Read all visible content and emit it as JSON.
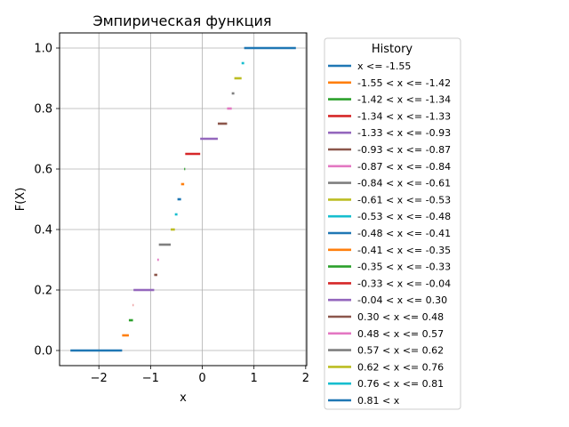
{
  "chart_data": {
    "type": "line",
    "title": "Эмпирическая функция",
    "xlabel": "x",
    "ylabel": "F(X)",
    "xlim": [
      -2.76,
      2.02
    ],
    "ylim": [
      -0.05,
      1.05
    ],
    "xticks": [
      -2,
      -1,
      0,
      1,
      2
    ],
    "xtick_labels": [
      "−2",
      "−1",
      "0",
      "1",
      "2"
    ],
    "yticks": [
      0.0,
      0.2,
      0.4,
      0.6,
      0.8,
      1.0
    ],
    "ytick_labels": [
      "0.0",
      "0.2",
      "0.4",
      "0.6",
      "0.8",
      "1.0"
    ],
    "grid": true,
    "legend": {
      "title": "History",
      "placement": "outside-right"
    },
    "series": [
      {
        "name": "x <= -1.55",
        "x": [
          -2.55,
          -1.55
        ],
        "y": 0.0,
        "color": "#1f77b4"
      },
      {
        "name": "-1.55 < x <= -1.42",
        "x": [
          -1.55,
          -1.42
        ],
        "y": 0.05,
        "color": "#ff7f0e"
      },
      {
        "name": "-1.42 < x <= -1.34",
        "x": [
          -1.42,
          -1.34
        ],
        "y": 0.1,
        "color": "#2ca02c"
      },
      {
        "name": "-1.34 < x <= -1.33",
        "x": [
          -1.34,
          -1.33
        ],
        "y": 0.15,
        "color": "#d62728"
      },
      {
        "name": "-1.33 < x <= -0.93",
        "x": [
          -1.33,
          -0.93
        ],
        "y": 0.2,
        "color": "#9467bd"
      },
      {
        "name": "-0.93 < x <= -0.87",
        "x": [
          -0.93,
          -0.87
        ],
        "y": 0.25,
        "color": "#8c564b"
      },
      {
        "name": "-0.87 < x <= -0.84",
        "x": [
          -0.87,
          -0.84
        ],
        "y": 0.3,
        "color": "#e377c2"
      },
      {
        "name": "-0.84 < x <= -0.61",
        "x": [
          -0.84,
          -0.61
        ],
        "y": 0.35,
        "color": "#7f7f7f"
      },
      {
        "name": "-0.61 < x <= -0.53",
        "x": [
          -0.61,
          -0.53
        ],
        "y": 0.4,
        "color": "#bcbd22"
      },
      {
        "name": "-0.53 < x <= -0.48",
        "x": [
          -0.53,
          -0.48
        ],
        "y": 0.45,
        "color": "#17becf"
      },
      {
        "name": "-0.48 < x <= -0.41",
        "x": [
          -0.48,
          -0.41
        ],
        "y": 0.5,
        "color": "#1f77b4"
      },
      {
        "name": "-0.41 < x <= -0.35",
        "x": [
          -0.41,
          -0.35
        ],
        "y": 0.55,
        "color": "#ff7f0e"
      },
      {
        "name": "-0.35 < x <= -0.33",
        "x": [
          -0.35,
          -0.33
        ],
        "y": 0.6,
        "color": "#2ca02c"
      },
      {
        "name": "-0.33 < x <= -0.04",
        "x": [
          -0.33,
          -0.04
        ],
        "y": 0.65,
        "color": "#d62728"
      },
      {
        "name": "-0.04 < x <= 0.30",
        "x": [
          -0.04,
          0.3
        ],
        "y": 0.7,
        "color": "#9467bd"
      },
      {
        "name": "0.30 < x <= 0.48",
        "x": [
          0.3,
          0.48
        ],
        "y": 0.75,
        "color": "#8c564b"
      },
      {
        "name": "0.48 < x <= 0.57",
        "x": [
          0.48,
          0.57
        ],
        "y": 0.8,
        "color": "#e377c2"
      },
      {
        "name": "0.57 < x <= 0.62",
        "x": [
          0.57,
          0.62
        ],
        "y": 0.85,
        "color": "#7f7f7f"
      },
      {
        "name": "0.62 < x <= 0.76",
        "x": [
          0.62,
          0.76
        ],
        "y": 0.9,
        "color": "#bcbd22"
      },
      {
        "name": "0.76 < x <= 0.81",
        "x": [
          0.76,
          0.81
        ],
        "y": 0.95,
        "color": "#17becf"
      },
      {
        "name": "0.81 < x",
        "x": [
          0.81,
          1.81
        ],
        "y": 1.0,
        "color": "#1f77b4"
      }
    ]
  }
}
